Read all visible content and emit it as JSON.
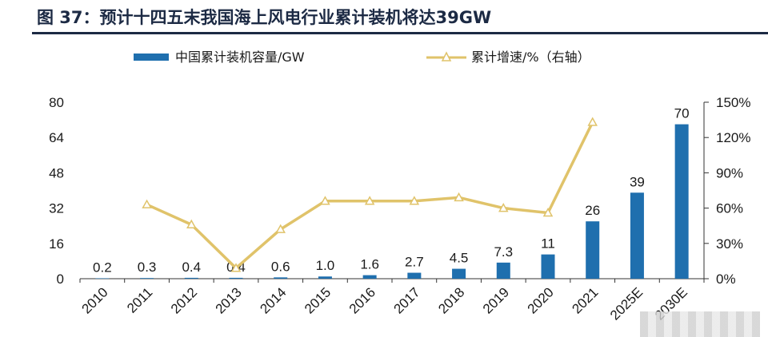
{
  "header": {
    "title": "图 37：预计十四五末我国海上风电行业累计装机将达39GW"
  },
  "chart_data": {
    "type": "bar",
    "categories": [
      "2010",
      "2011",
      "2012",
      "2013",
      "2014",
      "2015",
      "2016",
      "2017",
      "2018",
      "2019",
      "2020",
      "2021",
      "2025E",
      "2030E"
    ],
    "series": [
      {
        "name": "中国累计装机容量/GW",
        "type": "bar",
        "axis": "left",
        "color": "#1f6fae",
        "values": [
          0.2,
          0.3,
          0.4,
          0.4,
          0.6,
          1.0,
          1.6,
          2.7,
          4.5,
          7.3,
          11,
          26,
          39,
          70
        ],
        "labels": [
          "0.2",
          "0.3",
          "0.4",
          "0.4",
          "0.6",
          "1.0",
          "1.6",
          "2.7",
          "4.5",
          "7.3",
          "11",
          "26",
          "39",
          "70"
        ]
      },
      {
        "name": "累计增速/%（右轴）",
        "type": "line",
        "axis": "right",
        "color": "#e0c36a",
        "marker": "triangle",
        "x": [
          "2011",
          "2012",
          "2013",
          "2014",
          "2015",
          "2016",
          "2017",
          "2018",
          "2019",
          "2020",
          "2021"
        ],
        "values": [
          63,
          46,
          9,
          42,
          66,
          66,
          66,
          69,
          60,
          56,
          133
        ]
      }
    ],
    "y_left": {
      "min": 0,
      "max": 80,
      "ticks": [
        "0",
        "16",
        "32",
        "48",
        "64",
        "80"
      ]
    },
    "y_right": {
      "min": 0,
      "max": 150,
      "ticks": [
        "0%",
        "30%",
        "60%",
        "90%",
        "120%",
        "150%"
      ]
    },
    "legend_position": "top",
    "grid": false
  }
}
